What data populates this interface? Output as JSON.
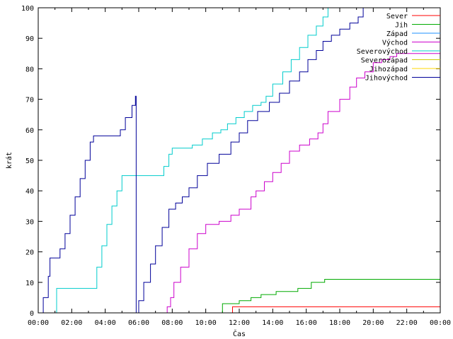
{
  "chart_data": {
    "type": "line",
    "xlabel": "Čas",
    "ylabel": "krát",
    "ylim": [
      0,
      100
    ],
    "xlim": [
      0,
      24
    ],
    "x_ticks": [
      "00:00",
      "02:00",
      "04:00",
      "06:00",
      "08:00",
      "10:00",
      "12:00",
      "14:00",
      "16:00",
      "18:00",
      "20:00",
      "22:00",
      "00:00"
    ],
    "y_ticks": [
      "0",
      "10",
      "20",
      "30",
      "40",
      "50",
      "60",
      "70",
      "80",
      "90",
      "100"
    ],
    "legend_position": "top-right",
    "series": [
      {
        "name": "Sever",
        "color": "#ff0000",
        "step": true,
        "x": [
          11.6,
          11.6,
          24
        ],
        "y": [
          0,
          2,
          2
        ]
      },
      {
        "name": "Jih",
        "color": "#00aa00",
        "step": true,
        "x": [
          10.9,
          11.0,
          11.5,
          12.0,
          12.7,
          13.3,
          14.2,
          15.5,
          16.3,
          17.1,
          24
        ],
        "y": [
          0,
          3,
          3,
          4,
          5,
          6,
          7,
          8,
          10,
          11,
          11
        ]
      },
      {
        "name": "Západ",
        "color": "#1e90ff",
        "step": true,
        "x": [],
        "y": []
      },
      {
        "name": "Východ",
        "color": "#cc00cc",
        "step": true,
        "x": [
          7.6,
          7.7,
          7.9,
          8.1,
          8.5,
          9.0,
          9.5,
          10.0,
          10.8,
          11.5,
          12.0,
          12.7,
          13.0,
          13.5,
          14.0,
          14.5,
          15.0,
          15.6,
          16.2,
          16.7,
          17.0,
          17.3,
          18.0,
          18.6,
          19.0,
          19.5,
          20.0,
          20.5,
          21.0,
          21.4,
          22.0,
          23.0,
          24
        ],
        "y": [
          0,
          2,
          5,
          10,
          15,
          21,
          26,
          29,
          30,
          32,
          34,
          38,
          40,
          43,
          46,
          49,
          53,
          55,
          57,
          59,
          62,
          66,
          70,
          74,
          77,
          79,
          82,
          83,
          84,
          85,
          85,
          85,
          85
        ]
      },
      {
        "name": "Severovýchod",
        "color": "#00cccc",
        "step": true,
        "x": [
          1.0,
          1.1,
          2.0,
          3.2,
          3.5,
          3.8,
          4.1,
          4.4,
          4.7,
          5.0,
          7.3,
          7.5,
          7.8,
          8.0,
          8.5,
          9.2,
          9.8,
          10.4,
          10.9,
          11.3,
          11.8,
          12.3,
          12.8,
          13.3,
          13.6,
          14.0,
          14.6,
          15.1,
          15.6,
          16.1,
          16.6,
          17.0,
          17.3,
          24
        ],
        "y": [
          0,
          8,
          8,
          8,
          15,
          22,
          29,
          35,
          40,
          45,
          45,
          48,
          52,
          54,
          54,
          55,
          57,
          59,
          60,
          62,
          64,
          66,
          68,
          69,
          71,
          75,
          79,
          83,
          87,
          91,
          94,
          97,
          100,
          100
        ]
      },
      {
        "name": "Severozápad",
        "color": "#cccc00",
        "step": true,
        "x": [],
        "y": []
      },
      {
        "name": "Jihozápad",
        "color": "#ffd700",
        "step": true,
        "x": [],
        "y": []
      },
      {
        "name": "Jihovýchod",
        "color": "#000099",
        "step": true,
        "x": [
          0.1,
          0.3,
          0.6,
          0.7,
          1.0,
          1.3,
          1.6,
          1.9,
          2.2,
          2.5,
          2.8,
          3.1,
          3.3,
          4.2,
          4.6,
          4.9,
          5.2,
          5.6,
          5.8,
          5.85,
          6.0,
          6.3,
          6.7,
          7.0,
          7.4,
          7.8,
          8.2,
          8.6,
          9.0,
          9.5,
          10.1,
          10.8,
          11.5,
          12.0,
          12.5,
          13.1,
          13.8,
          14.4,
          15.0,
          15.6,
          16.1,
          16.6,
          17.0,
          17.5,
          18.0,
          18.6,
          19.1,
          19.4,
          24
        ],
        "y": [
          0,
          5,
          12,
          18,
          18,
          21,
          26,
          32,
          38,
          44,
          50,
          56,
          58,
          58,
          58,
          60,
          64,
          68,
          71,
          0,
          4,
          10,
          16,
          22,
          28,
          34,
          36,
          38,
          41,
          45,
          49,
          52,
          56,
          59,
          63,
          66,
          69,
          72,
          76,
          79,
          83,
          86,
          89,
          91,
          93,
          95,
          97,
          100,
          100
        ]
      }
    ]
  }
}
